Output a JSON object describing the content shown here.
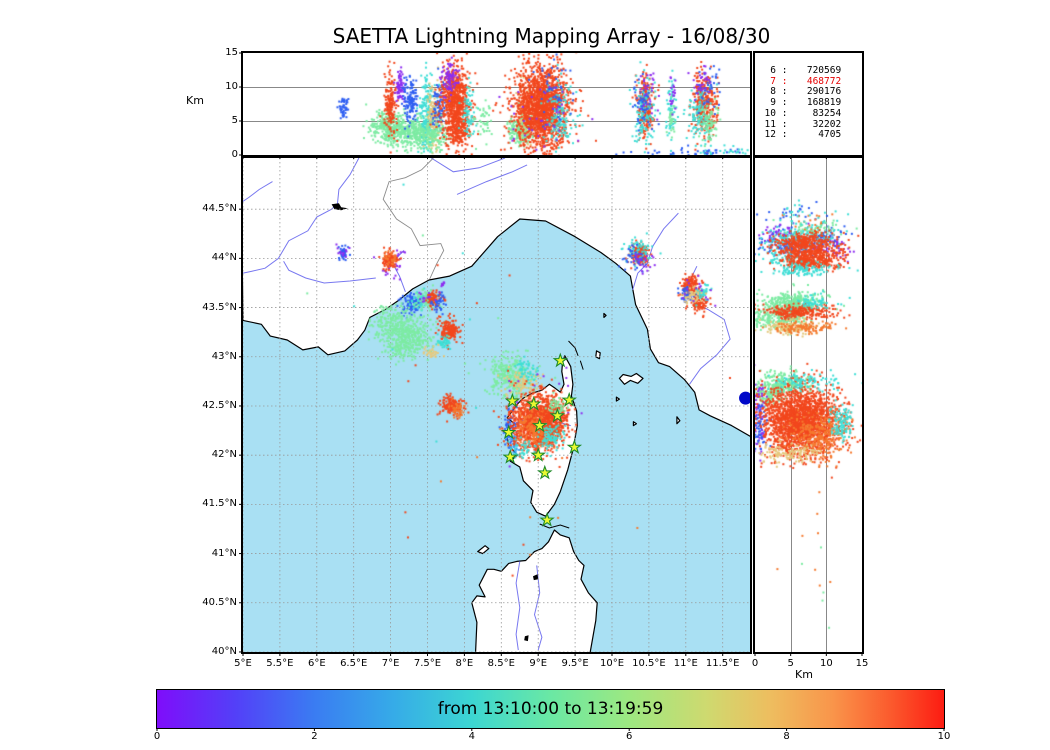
{
  "title": "SAETTA Lightning Mapping Array - 16/08/30",
  "top_panel": {
    "ylabel": "Km",
    "yticks": [
      {
        "v": 15,
        "l": "15"
      },
      {
        "v": 10,
        "l": "10"
      },
      {
        "v": 5,
        "l": "5"
      },
      {
        "v": 0,
        "l": "0"
      }
    ],
    "ygrid": [
      5,
      10
    ]
  },
  "stats_panel": {
    "rows": [
      {
        "level": "6",
        "count": "720569",
        "color": "#000000"
      },
      {
        "level": "7",
        "count": "468772",
        "color": "#e60000"
      },
      {
        "level": "8",
        "count": "290176",
        "color": "#000000"
      },
      {
        "level": "9",
        "count": "168819",
        "color": "#000000"
      },
      {
        "level": "10",
        "count": "83254",
        "color": "#000000"
      },
      {
        "level": "11",
        "count": "32202",
        "color": "#000000"
      },
      {
        "level": "12",
        "count": "4705",
        "color": "#000000"
      }
    ]
  },
  "map_panel": {
    "lat_ticks": [
      {
        "v": 44.5,
        "l": "44.5°N"
      },
      {
        "v": 44,
        "l": "44°N"
      },
      {
        "v": 43.5,
        "l": "43.5°N"
      },
      {
        "v": 43,
        "l": "43°N"
      },
      {
        "v": 42.5,
        "l": "42.5°N"
      },
      {
        "v": 42,
        "l": "42°N"
      },
      {
        "v": 41.5,
        "l": "41.5°N"
      },
      {
        "v": 41,
        "l": "41°N"
      },
      {
        "v": 40.5,
        "l": "40.5°N"
      },
      {
        "v": 40,
        "l": "40°N"
      }
    ],
    "lon_ticks": [
      {
        "v": 5,
        "l": "5°E"
      },
      {
        "v": 5.5,
        "l": "5.5°E"
      },
      {
        "v": 6,
        "l": "6°E"
      },
      {
        "v": 6.5,
        "l": "6.5°E"
      },
      {
        "v": 7,
        "l": "7°E"
      },
      {
        "v": 7.5,
        "l": "7.5°E"
      },
      {
        "v": 8,
        "l": "8°E"
      },
      {
        "v": 8.5,
        "l": "8.5°E"
      },
      {
        "v": 9,
        "l": "9°E"
      },
      {
        "v": 9.5,
        "l": "9.5°E"
      },
      {
        "v": 10,
        "l": "10°E"
      },
      {
        "v": 10.5,
        "l": "10.5°E"
      },
      {
        "v": 11,
        "l": "11°E"
      },
      {
        "v": 11.5,
        "l": "11.5°E"
      }
    ],
    "sea_color": "#a9e0f3",
    "land_color": "#ffffff"
  },
  "right_panel": {
    "xlabel": "Km",
    "xticks": [
      {
        "v": 0,
        "l": "0"
      },
      {
        "v": 5,
        "l": "5"
      },
      {
        "v": 10,
        "l": "10"
      },
      {
        "v": 15,
        "l": "15"
      }
    ],
    "xgrid": [
      5,
      10
    ]
  },
  "colorbar": {
    "label": "from 13:10:00 to 13:19:59",
    "ticks": [
      {
        "v": 0,
        "l": "0"
      },
      {
        "v": 2,
        "l": "2"
      },
      {
        "v": 4,
        "l": "4"
      },
      {
        "v": 6,
        "l": "6"
      },
      {
        "v": 8,
        "l": "8"
      },
      {
        "v": 10,
        "l": "10"
      }
    ],
    "range": [
      0,
      10
    ],
    "stops": [
      [
        "0%",
        "#7f0dfa"
      ],
      [
        "10%",
        "#5340f8"
      ],
      [
        "20%",
        "#3a7cf2"
      ],
      [
        "30%",
        "#36abe8"
      ],
      [
        "40%",
        "#3cd6d2"
      ],
      [
        "50%",
        "#6ae8a4"
      ],
      [
        "60%",
        "#9de881"
      ],
      [
        "70%",
        "#cfd96f"
      ],
      [
        "78%",
        "#eebd5f"
      ],
      [
        "86%",
        "#f9944a"
      ],
      [
        "93%",
        "#fb5c2e"
      ],
      [
        "100%",
        "#fc1c12"
      ]
    ]
  },
  "chart_data": {
    "type": "scatter",
    "title": "SAETTA Lightning Mapping Array - 16/08/30",
    "time_window": "from 13:10:00 to 13:19:59",
    "source_counts_by_station_level": [
      {
        "level": 6,
        "count": 720569
      },
      {
        "level": 7,
        "count": 468772
      },
      {
        "level": 8,
        "count": 290176
      },
      {
        "level": 9,
        "count": 168819
      },
      {
        "level": 10,
        "count": 83254
      },
      {
        "level": 11,
        "count": 32202
      },
      {
        "level": 12,
        "count": 4705
      }
    ],
    "map_extent": {
      "lon": [
        5.0,
        11.87
      ],
      "lat": [
        40.0,
        45.02
      ]
    },
    "alt_extent_km": [
      0,
      15
    ],
    "palette": {
      "purple": "#8d2df0",
      "blue": "#2f5ff2",
      "lblue": "#3aa5f5",
      "cyan": "#3fded6",
      "green": "#7deba3",
      "tan": "#e5c97f",
      "orange": "#f57a2f",
      "red": "#f2471d"
    },
    "stations": [
      [
        9.3,
        42.96
      ],
      [
        8.65,
        42.55
      ],
      [
        8.94,
        42.52
      ],
      [
        9.42,
        42.56
      ],
      [
        9.26,
        42.4
      ],
      [
        9.02,
        42.3
      ],
      [
        8.6,
        42.23
      ],
      [
        9.49,
        42.08
      ],
      [
        9.0,
        42.0
      ],
      [
        8.62,
        41.98
      ],
      [
        9.09,
        41.82
      ],
      [
        9.12,
        41.34
      ]
    ],
    "city_marker": {
      "lon": 11.81,
      "lat": 42.58,
      "color": "#0008c8"
    },
    "clusters": [
      [
        "m",
        6.36,
        44.05,
        0.035,
        0.045,
        40,
        "blue"
      ],
      [
        "m",
        6.36,
        44.08,
        0.05,
        0.04,
        12,
        "purple"
      ],
      [
        "m",
        7.03,
        43.96,
        0.1,
        0.08,
        30,
        "purple"
      ],
      [
        "m",
        7.0,
        43.98,
        0.055,
        0.045,
        110,
        "red"
      ],
      [
        "m",
        7.0,
        44.0,
        0.05,
        0.04,
        25,
        "orange"
      ],
      [
        "m",
        7.71,
        43.74,
        0.02,
        0.015,
        8,
        "purple"
      ],
      [
        "m",
        7.28,
        43.55,
        0.07,
        0.05,
        90,
        "blue"
      ],
      [
        "m",
        7.4,
        43.58,
        0.05,
        0.04,
        55,
        "cyan"
      ],
      [
        "m",
        7.52,
        43.57,
        0.08,
        0.05,
        80,
        "green"
      ],
      [
        "m",
        7.58,
        43.59,
        0.06,
        0.04,
        70,
        "red"
      ],
      [
        "m",
        7.65,
        43.55,
        0.05,
        0.04,
        35,
        "blue"
      ],
      [
        "m",
        7.47,
        43.63,
        0.09,
        0.04,
        14,
        "purple"
      ],
      [
        "m",
        7.05,
        43.32,
        0.16,
        0.1,
        260,
        "green"
      ],
      [
        "m",
        7.3,
        43.2,
        0.15,
        0.1,
        260,
        "green"
      ],
      [
        "m",
        7.12,
        43.08,
        0.1,
        0.06,
        70,
        "green"
      ],
      [
        "m",
        7.8,
        43.26,
        0.07,
        0.055,
        170,
        "red"
      ],
      [
        "m",
        7.73,
        43.14,
        0.05,
        0.035,
        45,
        "cyan"
      ],
      [
        "m",
        7.56,
        43.04,
        0.06,
        0.03,
        30,
        "tan"
      ],
      [
        "m",
        7.83,
        42.49,
        0.08,
        0.055,
        150,
        "red"
      ],
      [
        "m",
        7.9,
        42.46,
        0.06,
        0.04,
        40,
        "orange"
      ],
      [
        "m",
        8.62,
        42.8,
        0.16,
        0.1,
        300,
        "green"
      ],
      [
        "m",
        8.8,
        42.72,
        0.12,
        0.08,
        90,
        "tan"
      ],
      [
        "m",
        8.85,
        42.88,
        0.08,
        0.05,
        50,
        "cyan"
      ],
      [
        "m",
        9.05,
        42.55,
        0.3,
        0.25,
        25,
        "purple"
      ],
      [
        "m",
        8.62,
        42.28,
        0.05,
        0.1,
        70,
        "blue"
      ],
      [
        "m",
        8.66,
        42.12,
        0.05,
        0.06,
        40,
        "lblue"
      ],
      [
        "m",
        8.98,
        42.33,
        0.17,
        0.14,
        1200,
        "red"
      ],
      [
        "m",
        9.0,
        42.28,
        0.12,
        0.1,
        220,
        "orange"
      ],
      [
        "m",
        9.22,
        42.4,
        0.1,
        0.09,
        280,
        "red"
      ],
      [
        "m",
        9.18,
        42.18,
        0.08,
        0.07,
        90,
        "cyan"
      ],
      [
        "m",
        9.25,
        42.5,
        0.07,
        0.05,
        50,
        "green"
      ],
      [
        "m",
        8.8,
        42.05,
        0.08,
        0.05,
        40,
        "cyan"
      ],
      [
        "m",
        10.38,
        44.04,
        0.06,
        0.055,
        160,
        "red"
      ],
      [
        "m",
        10.36,
        44.08,
        0.09,
        0.06,
        60,
        "cyan"
      ],
      [
        "m",
        10.3,
        44.0,
        0.08,
        0.06,
        40,
        "blue"
      ],
      [
        "m",
        10.42,
        43.97,
        0.07,
        0.05,
        22,
        "purple"
      ],
      [
        "m",
        11.06,
        43.73,
        0.065,
        0.05,
        130,
        "red"
      ],
      [
        "m",
        11.17,
        43.57,
        0.065,
        0.05,
        110,
        "red"
      ],
      [
        "m",
        11.02,
        43.63,
        0.05,
        0.04,
        55,
        "blue"
      ],
      [
        "m",
        11.24,
        43.66,
        0.05,
        0.04,
        40,
        "cyan"
      ],
      [
        "m",
        11.1,
        43.62,
        0.06,
        0.04,
        45,
        "tan"
      ],
      [
        "m",
        11.12,
        43.68,
        0.11,
        0.08,
        16,
        "purple"
      ],
      [
        "m",
        8.5,
        42.2,
        1.5,
        0.9,
        12,
        "red"
      ],
      [
        "m",
        7.8,
        42.9,
        1.6,
        0.8,
        8,
        "cyan"
      ],
      [
        "m",
        9.0,
        41.5,
        0.8,
        0.5,
        8,
        "orange"
      ],
      [
        "m",
        6.5,
        43.5,
        1.0,
        0.6,
        6,
        "green"
      ],
      [
        "t",
        6.36,
        6.8,
        0.035,
        0.8,
        45,
        "blue"
      ],
      [
        "t",
        7.02,
        4.0,
        0.14,
        1.2,
        420,
        "green"
      ],
      [
        "t",
        7.35,
        3.2,
        0.12,
        1.1,
        260,
        "green"
      ],
      [
        "t",
        7.0,
        7.5,
        0.045,
        2.4,
        170,
        "red"
      ],
      [
        "t",
        7.13,
        9.8,
        0.03,
        1.2,
        70,
        "purple"
      ],
      [
        "t",
        7.27,
        7.8,
        0.05,
        1.7,
        140,
        "blue"
      ],
      [
        "t",
        7.5,
        6.3,
        0.05,
        2.8,
        180,
        "cyan"
      ],
      [
        "t",
        7.58,
        5.6,
        0.05,
        2.4,
        140,
        "tan"
      ],
      [
        "t",
        7.66,
        7.2,
        0.05,
        2.0,
        100,
        "blue"
      ],
      [
        "t",
        7.58,
        2.8,
        0.1,
        1.1,
        140,
        "green"
      ],
      [
        "t",
        7.87,
        8.0,
        0.1,
        2.6,
        700,
        "red"
      ],
      [
        "t",
        7.92,
        3.5,
        0.09,
        1.4,
        200,
        "red"
      ],
      [
        "t",
        7.8,
        11.0,
        0.06,
        1.2,
        80,
        "purple"
      ],
      [
        "t",
        8.05,
        6.0,
        0.05,
        2.0,
        70,
        "cyan"
      ],
      [
        "t",
        8.25,
        5.0,
        0.08,
        2.0,
        50,
        "green"
      ],
      [
        "t",
        8.78,
        3.8,
        0.09,
        1.1,
        220,
        "green"
      ],
      [
        "t",
        8.8,
        6.5,
        0.06,
        2.0,
        80,
        "tan"
      ],
      [
        "t",
        9.05,
        7.0,
        0.18,
        3.0,
        1800,
        "red"
      ],
      [
        "t",
        9.3,
        5.5,
        0.1,
        2.5,
        140,
        "cyan"
      ],
      [
        "t",
        9.2,
        9.0,
        0.15,
        2.5,
        50,
        "blue"
      ],
      [
        "t",
        9.0,
        6.0,
        0.25,
        3.0,
        40,
        "purple"
      ],
      [
        "t",
        10.45,
        7.5,
        0.05,
        2.2,
        240,
        "red"
      ],
      [
        "t",
        10.43,
        6.5,
        0.08,
        2.8,
        130,
        "cyan"
      ],
      [
        "t",
        10.4,
        8.0,
        0.08,
        2.5,
        50,
        "blue"
      ],
      [
        "t",
        10.48,
        9.5,
        0.06,
        1.5,
        30,
        "purple"
      ],
      [
        "t",
        10.8,
        7.0,
        0.035,
        2.2,
        60,
        "cyan"
      ],
      [
        "t",
        10.8,
        5.5,
        0.03,
        1.5,
        30,
        "green"
      ],
      [
        "t",
        10.82,
        9.0,
        0.03,
        1.5,
        20,
        "purple"
      ],
      [
        "t",
        11.25,
        7.5,
        0.08,
        2.4,
        320,
        "red"
      ],
      [
        "t",
        11.18,
        5.5,
        0.08,
        2.2,
        110,
        "cyan"
      ],
      [
        "t",
        11.32,
        4.5,
        0.07,
        1.5,
        70,
        "green"
      ],
      [
        "t",
        11.3,
        9.5,
        0.08,
        1.5,
        40,
        "blue"
      ],
      [
        "t",
        11.22,
        10.5,
        0.06,
        1.2,
        30,
        "purple"
      ],
      [
        "t",
        11.1,
        0.4,
        0.55,
        0.35,
        45,
        "blue"
      ],
      [
        "t",
        11.55,
        0.5,
        0.25,
        0.35,
        25,
        "cyan"
      ],
      [
        "r",
        3.5,
        44.25,
        1.5,
        0.06,
        60,
        "purple"
      ],
      [
        "r",
        11.5,
        44.1,
        1.5,
        0.06,
        50,
        "purple"
      ],
      [
        "r",
        5.0,
        44.12,
        2.2,
        0.05,
        120,
        "blue"
      ],
      [
        "r",
        9.5,
        44.22,
        1.5,
        0.05,
        80,
        "blue"
      ],
      [
        "r",
        6.0,
        44.22,
        2.6,
        0.06,
        150,
        "cyan"
      ],
      [
        "r",
        4.0,
        44.0,
        2.0,
        0.05,
        80,
        "cyan"
      ],
      [
        "r",
        9.0,
        44.3,
        2.0,
        0.05,
        60,
        "green"
      ],
      [
        "r",
        7.0,
        44.17,
        2.2,
        0.045,
        280,
        "red"
      ],
      [
        "r",
        7.5,
        44.06,
        2.2,
        0.04,
        260,
        "red"
      ],
      [
        "r",
        8.0,
        43.96,
        2.0,
        0.035,
        240,
        "red"
      ],
      [
        "r",
        7.0,
        43.88,
        2.4,
        0.03,
        110,
        "cyan"
      ],
      [
        "r",
        6.0,
        44.45,
        2.5,
        0.06,
        25,
        "blue"
      ],
      [
        "r",
        8.0,
        44.4,
        2.0,
        0.05,
        20,
        "orange"
      ],
      [
        "r",
        7.0,
        44.42,
        2.5,
        0.08,
        30,
        "cyan"
      ],
      [
        "r",
        5.5,
        43.55,
        2.2,
        0.06,
        330,
        "green"
      ],
      [
        "r",
        4.0,
        43.42,
        2.0,
        0.05,
        200,
        "green"
      ],
      [
        "r",
        2.0,
        43.35,
        1.2,
        0.05,
        50,
        "green"
      ],
      [
        "r",
        6.0,
        43.46,
        2.4,
        0.035,
        260,
        "red"
      ],
      [
        "r",
        5.0,
        43.3,
        1.8,
        0.04,
        150,
        "tan"
      ],
      [
        "r",
        7.0,
        43.3,
        2.0,
        0.03,
        120,
        "orange"
      ],
      [
        "r",
        8.5,
        43.55,
        1.5,
        0.04,
        60,
        "cyan"
      ],
      [
        "r",
        4.0,
        42.72,
        1.8,
        0.06,
        240,
        "green"
      ],
      [
        "r",
        2.0,
        42.6,
        1.2,
        0.05,
        110,
        "green"
      ],
      [
        "r",
        0.6,
        42.4,
        0.5,
        0.16,
        80,
        "purple"
      ],
      [
        "r",
        0.8,
        42.3,
        0.6,
        0.12,
        60,
        "blue"
      ],
      [
        "r",
        6.5,
        42.35,
        2.8,
        0.17,
        2000,
        "red"
      ],
      [
        "r",
        9.0,
        42.2,
        2.0,
        0.12,
        280,
        "orange"
      ],
      [
        "r",
        5.0,
        42.02,
        2.0,
        0.05,
        120,
        "tan"
      ],
      [
        "r",
        12.0,
        42.35,
        0.9,
        0.1,
        100,
        "cyan"
      ],
      [
        "r",
        7.0,
        42.75,
        2.5,
        0.05,
        100,
        "cyan"
      ],
      [
        "r",
        7.0,
        41.2,
        3.0,
        0.4,
        8,
        "orange"
      ],
      [
        "r",
        10.0,
        40.6,
        2.0,
        0.3,
        5,
        "green"
      ]
    ]
  }
}
